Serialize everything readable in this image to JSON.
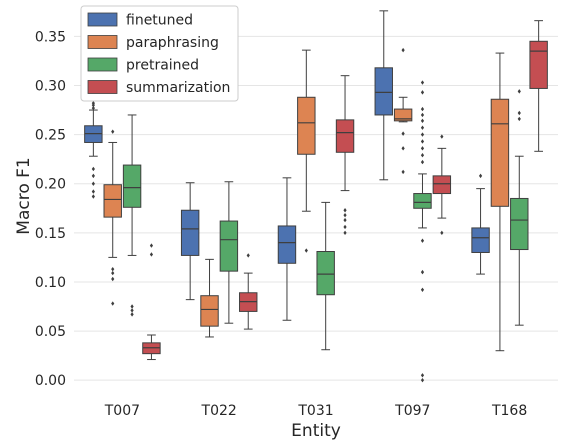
{
  "chart_data": {
    "type": "box",
    "xlabel": "Entity",
    "ylabel": "Macro F1",
    "ylim": [
      -0.01,
      0.385
    ],
    "yticks": [
      "0.00",
      "0.05",
      "0.10",
      "0.15",
      "0.20",
      "0.25",
      "0.30",
      "0.35"
    ],
    "grid": true,
    "legend_position": "top-left",
    "categories": [
      "T007",
      "T022",
      "T031",
      "T097",
      "T168"
    ],
    "series": [
      {
        "name": "finetuned",
        "color": "#4c72b0",
        "boxes": [
          {
            "whislo": 0.228,
            "q1": 0.242,
            "med": 0.251,
            "q3": 0.259,
            "whishi": 0.275,
            "fliers": [
              0.282,
              0.28,
              0.277,
              0.215,
              0.208,
              0.2,
              0.192,
              0.187
            ]
          },
          {
            "whislo": 0.082,
            "q1": 0.127,
            "med": 0.154,
            "q3": 0.173,
            "whishi": 0.201,
            "fliers": []
          },
          {
            "whislo": 0.061,
            "q1": 0.119,
            "med": 0.14,
            "q3": 0.157,
            "whishi": 0.206,
            "fliers": []
          },
          {
            "whislo": 0.204,
            "q1": 0.27,
            "med": 0.293,
            "q3": 0.318,
            "whishi": 0.376,
            "fliers": []
          },
          {
            "whislo": 0.108,
            "q1": 0.13,
            "med": 0.145,
            "q3": 0.155,
            "whishi": 0.195,
            "fliers": [
              0.208
            ]
          }
        ]
      },
      {
        "name": "paraphrasing",
        "color": "#dd8452",
        "boxes": [
          {
            "whislo": 0.125,
            "q1": 0.166,
            "med": 0.184,
            "q3": 0.199,
            "whishi": 0.242,
            "fliers": [
              0.253,
              0.113,
              0.109,
              0.103,
              0.078
            ]
          },
          {
            "whislo": 0.044,
            "q1": 0.055,
            "med": 0.072,
            "q3": 0.086,
            "whishi": 0.123,
            "fliers": []
          },
          {
            "whislo": 0.172,
            "q1": 0.23,
            "med": 0.262,
            "q3": 0.288,
            "whishi": 0.336,
            "fliers": [
              0.132
            ]
          },
          {
            "whislo": 0.263,
            "q1": 0.264,
            "med": 0.266,
            "q3": 0.276,
            "whishi": 0.288,
            "fliers": [
              0.336,
              0.251,
              0.236,
              0.212
            ]
          },
          {
            "whislo": 0.03,
            "q1": 0.177,
            "med": 0.261,
            "q3": 0.286,
            "whishi": 0.333,
            "fliers": []
          }
        ]
      },
      {
        "name": "pretrained",
        "color": "#55a868",
        "boxes": [
          {
            "whislo": 0.127,
            "q1": 0.176,
            "med": 0.196,
            "q3": 0.219,
            "whishi": 0.27,
            "fliers": [
              0.075,
              0.071,
              0.067
            ]
          },
          {
            "whislo": 0.058,
            "q1": 0.111,
            "med": 0.143,
            "q3": 0.162,
            "whishi": 0.202,
            "fliers": []
          },
          {
            "whislo": 0.031,
            "q1": 0.087,
            "med": 0.108,
            "q3": 0.131,
            "whishi": 0.181,
            "fliers": []
          },
          {
            "whislo": 0.155,
            "q1": 0.175,
            "med": 0.181,
            "q3": 0.19,
            "whishi": 0.21,
            "fliers": [
              0.303,
              0.293,
              0.276,
              0.27,
              0.264,
              0.257,
              0.25,
              0.243,
              0.236,
              0.229,
              0.222,
              0.142,
              0.11,
              0.092,
              0.005,
              0.0
            ]
          },
          {
            "whislo": 0.056,
            "q1": 0.133,
            "med": 0.163,
            "q3": 0.185,
            "whishi": 0.228,
            "fliers": [
              0.294,
              0.272,
              0.266
            ]
          }
        ]
      },
      {
        "name": "summarization",
        "color": "#c44e52",
        "boxes": [
          {
            "whislo": 0.021,
            "q1": 0.027,
            "med": 0.033,
            "q3": 0.038,
            "whishi": 0.046,
            "fliers": [
              0.137,
              0.128
            ]
          },
          {
            "whislo": 0.052,
            "q1": 0.07,
            "med": 0.08,
            "q3": 0.089,
            "whishi": 0.109,
            "fliers": [
              0.127
            ]
          },
          {
            "whislo": 0.193,
            "q1": 0.232,
            "med": 0.252,
            "q3": 0.265,
            "whishi": 0.31,
            "fliers": [
              0.173,
              0.168,
              0.163,
              0.156,
              0.15
            ]
          },
          {
            "whislo": 0.165,
            "q1": 0.19,
            "med": 0.2,
            "q3": 0.208,
            "whishi": 0.236,
            "fliers": [
              0.248,
              0.15
            ]
          },
          {
            "whislo": 0.233,
            "q1": 0.297,
            "med": 0.335,
            "q3": 0.345,
            "whishi": 0.366,
            "fliers": []
          }
        ]
      }
    ]
  }
}
